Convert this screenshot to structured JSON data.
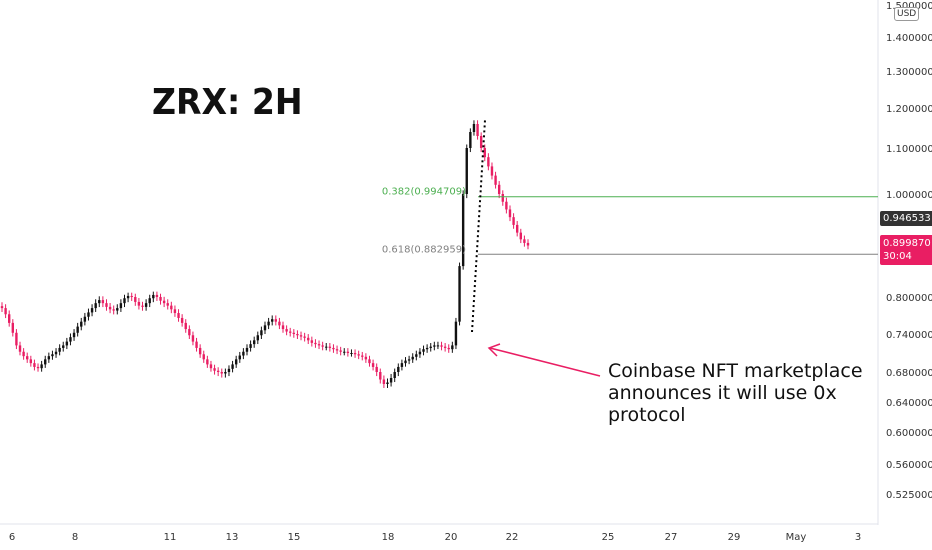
{
  "chart_data": {
    "type": "candlestick",
    "title": "ZRX: 2H",
    "currency": "USD",
    "y_ticks": [
      "1.500000",
      "1.400000",
      "1.300000",
      "1.200000",
      "1.100000",
      "1.000000",
      "0.800000",
      "0.740000",
      "0.680000",
      "0.640000",
      "0.600000",
      "0.560000",
      "0.525000"
    ],
    "x_ticks": [
      "6",
      "8",
      "11",
      "13",
      "15",
      "18",
      "20",
      "22",
      "25",
      "27",
      "29",
      "May",
      "3"
    ],
    "ylim": [
      0.5,
      1.52
    ],
    "fib_levels": [
      {
        "label": "0.382(0.994709)",
        "value": 0.994709,
        "color": "#4caf50"
      },
      {
        "label": "0.618(0.882959)",
        "value": 0.882959,
        "color": "#808080"
      }
    ],
    "price_tags": [
      {
        "label": "0.946533",
        "value": 0.946533,
        "color": "#333333"
      },
      {
        "label": "0.899870",
        "sub": "30:04",
        "value": 0.89987,
        "color": "#e91e63"
      }
    ],
    "annotation": "Coinbase NFT marketplace announces it will use 0x protocol",
    "series_close": [
      0.782,
      0.772,
      0.758,
      0.742,
      0.722,
      0.712,
      0.705,
      0.7,
      0.694,
      0.688,
      0.686,
      0.692,
      0.7,
      0.705,
      0.708,
      0.712,
      0.718,
      0.722,
      0.728,
      0.735,
      0.742,
      0.752,
      0.76,
      0.768,
      0.775,
      0.782,
      0.79,
      0.795,
      0.79,
      0.784,
      0.78,
      0.778,
      0.782,
      0.79,
      0.798,
      0.802,
      0.8,
      0.792,
      0.786,
      0.784,
      0.79,
      0.798,
      0.804,
      0.8,
      0.794,
      0.79,
      0.786,
      0.78,
      0.774,
      0.766,
      0.758,
      0.748,
      0.738,
      0.728,
      0.718,
      0.708,
      0.7,
      0.692,
      0.686,
      0.682,
      0.68,
      0.678,
      0.68,
      0.685,
      0.692,
      0.7,
      0.706,
      0.712,
      0.718,
      0.724,
      0.73,
      0.738,
      0.746,
      0.754,
      0.76,
      0.764,
      0.76,
      0.754,
      0.748,
      0.744,
      0.742,
      0.74,
      0.738,
      0.736,
      0.734,
      0.73,
      0.726,
      0.724,
      0.722,
      0.72,
      0.72,
      0.718,
      0.716,
      0.714,
      0.712,
      0.712,
      0.71,
      0.71,
      0.708,
      0.706,
      0.704,
      0.7,
      0.694,
      0.688,
      0.68,
      0.67,
      0.664,
      0.666,
      0.672,
      0.68,
      0.688,
      0.694,
      0.698,
      0.7,
      0.704,
      0.708,
      0.712,
      0.716,
      0.718,
      0.72,
      0.722,
      0.722,
      0.72,
      0.718,
      0.716,
      0.722,
      0.76,
      0.86,
      1.0,
      1.1,
      1.14,
      1.16,
      1.13,
      1.1,
      1.08,
      1.06,
      1.04,
      1.02,
      1.0,
      0.985,
      0.97,
      0.955,
      0.94,
      0.925,
      0.912,
      0.905,
      0.9
    ]
  }
}
